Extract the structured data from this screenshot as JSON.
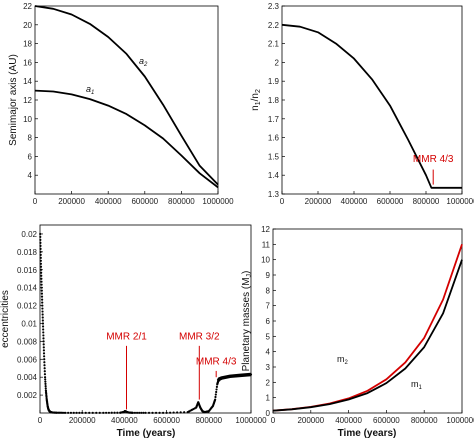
{
  "accent_red": "#d40000",
  "curve_black": "#000000",
  "chart_data": [
    {
      "type": "line",
      "id": "top-left",
      "xlabel": "",
      "ylabel": "Semimajor axis (AU)",
      "xlim": [
        0,
        1000000
      ],
      "ylim": [
        2,
        22
      ],
      "x_ticks": [
        0,
        200000,
        400000,
        600000,
        800000,
        1000000
      ],
      "x_tick_labels": [
        "0",
        "200000",
        "400000",
        "600000",
        "800000",
        "1000000"
      ],
      "y_ticks": [
        4,
        6,
        8,
        10,
        12,
        14,
        16,
        18,
        20,
        22
      ],
      "y_tick_labels": [
        "4",
        "6",
        "8",
        "10",
        "12",
        "14",
        "16",
        "18",
        "20",
        "22"
      ],
      "series": [
        {
          "name": "a2",
          "label_main": "a",
          "label_sub": "2",
          "color": "#000000",
          "x": [
            0,
            100000,
            200000,
            300000,
            400000,
            500000,
            600000,
            700000,
            800000,
            900000,
            1000000
          ],
          "y": [
            22,
            21.7,
            21.1,
            20.1,
            18.7,
            16.9,
            14.5,
            11.5,
            8.2,
            5.0,
            3.0
          ]
        },
        {
          "name": "a1",
          "label_main": "a",
          "label_sub": "1",
          "color": "#000000",
          "x": [
            0,
            100000,
            200000,
            300000,
            400000,
            500000,
            600000,
            700000,
            800000,
            900000,
            1000000
          ],
          "y": [
            13,
            12.9,
            12.6,
            12.1,
            11.4,
            10.5,
            9.3,
            7.9,
            6.1,
            4.2,
            2.7
          ]
        }
      ]
    },
    {
      "type": "line",
      "id": "top-right",
      "xlabel": "",
      "ylabel_main": "n",
      "ylabel_sub1": "1",
      "ylabel_slash": "/n",
      "ylabel_sub2": "2",
      "xlim": [
        0,
        1000000
      ],
      "ylim": [
        1.3,
        2.3
      ],
      "x_ticks": [
        0,
        200000,
        400000,
        600000,
        800000,
        1000000
      ],
      "x_tick_labels": [
        "0",
        "200000",
        "400000",
        "600000",
        "800000",
        "1000000"
      ],
      "y_ticks": [
        1.3,
        1.4,
        1.5,
        1.6,
        1.7,
        1.8,
        1.9,
        2.0,
        2.1,
        2.2,
        2.3
      ],
      "y_tick_labels": [
        "1.3",
        "1.4",
        "1.5",
        "1.6",
        "1.7",
        "1.8",
        "1.9",
        "2",
        "2.1",
        "2.2",
        "2.3"
      ],
      "series": [
        {
          "color": "#000000",
          "x": [
            0,
            100000,
            200000,
            300000,
            400000,
            500000,
            600000,
            700000,
            800000,
            830000,
            900000,
            1000000
          ],
          "y": [
            2.2,
            2.19,
            2.16,
            2.1,
            2.02,
            1.91,
            1.77,
            1.59,
            1.4,
            1.333,
            1.333,
            1.333
          ]
        }
      ],
      "annotations": [
        {
          "text": "MMR 4/3",
          "x": 840000,
          "y_text": 1.47,
          "y_line_top": 1.43,
          "y_line_bottom": 1.35
        }
      ]
    },
    {
      "type": "scatter",
      "id": "bottom-left",
      "xlabel": "Time (years)",
      "ylabel": "eccentricities",
      "xlim": [
        0,
        1000000
      ],
      "ylim": [
        0,
        0.021
      ],
      "x_ticks": [
        0,
        200000,
        400000,
        600000,
        800000,
        1000000
      ],
      "x_tick_labels": [
        "0",
        "200000",
        "400000",
        "600000",
        "800000",
        "1000000"
      ],
      "y_ticks": [
        0.002,
        0.004,
        0.006,
        0.008,
        0.01,
        0.012,
        0.014,
        0.016,
        0.018,
        0.02
      ],
      "y_tick_labels": [
        "0.002",
        "0.004",
        "0.006",
        "0.008",
        "0.01",
        "0.012",
        "0.014",
        "0.016",
        "0.018",
        "0.02"
      ],
      "series": [
        {
          "color": "#000000",
          "x": [
            1000,
            3000,
            5000,
            8000,
            11000,
            14000,
            17000,
            20000,
            24000,
            28000,
            32000,
            36000,
            40000,
            45000,
            50000,
            60000,
            80000,
            120000,
            200000,
            300000,
            380000,
            395000,
            405000,
            412000,
            420000,
            440000,
            500000,
            600000,
            700000,
            740000,
            750000,
            760000,
            770000,
            780000,
            800000,
            820000,
            830000,
            840000,
            845000,
            850000,
            860000,
            880000,
            900000,
            950000,
            1000000
          ],
          "y": [
            0.02,
            0.018,
            0.016,
            0.014,
            0.012,
            0.01,
            0.008,
            0.006,
            0.004,
            0.0025,
            0.0015,
            0.0008,
            0.0004,
            0.0002,
            0.0001,
            5e-05,
            3e-05,
            2e-05,
            2e-05,
            2e-05,
            3e-05,
            0.0001,
            0.0002,
            0.0001,
            5e-05,
            2e-05,
            2e-05,
            2e-05,
            0.0001,
            0.0006,
            0.0012,
            0.0006,
            0.0002,
            0.0001,
            0.0002,
            0.0008,
            0.0015,
            0.0032,
            0.0036,
            0.0038,
            0.0039,
            0.004,
            0.0041,
            0.0042,
            0.0043
          ]
        }
      ],
      "annotations": [
        {
          "text": "MMR 2/1",
          "x": 410000,
          "y_text": 0.0082,
          "y_line_top": 0.0075,
          "y_line_bottom": 0.0004
        },
        {
          "text": "MMR 3/2",
          "x": 755000,
          "y_text": 0.0082,
          "y_line_top": 0.0075,
          "y_line_bottom": 0.0015
        },
        {
          "text": "MMR 4/3",
          "x": 835000,
          "y_text": 0.0054,
          "y_line_top": 0.0047,
          "y_line_bottom": 0.004
        }
      ]
    },
    {
      "type": "line",
      "id": "bottom-right",
      "xlabel": "Time (years)",
      "ylabel": "Planetary masses (M",
      "ylabel_sub": "J",
      "ylabel_end": ")",
      "xlim": [
        0,
        1000000
      ],
      "ylim": [
        0,
        12
      ],
      "x_ticks": [
        0,
        200000,
        400000,
        600000,
        800000,
        1000000
      ],
      "x_tick_labels": [
        "0",
        "200000",
        "400000",
        "600000",
        "800000",
        "1000000"
      ],
      "y_ticks": [
        0,
        1,
        2,
        3,
        4,
        5,
        6,
        7,
        8,
        9,
        10,
        11,
        12
      ],
      "y_tick_labels": [
        "0",
        "1",
        "2",
        "3",
        "4",
        "5",
        "6",
        "7",
        "8",
        "9",
        "10",
        "11",
        "12"
      ],
      "series": [
        {
          "name": "m2",
          "label_main": "m",
          "label_sub": "2",
          "color": "#d40000",
          "x": [
            0,
            100000,
            200000,
            300000,
            400000,
            500000,
            600000,
            700000,
            800000,
            900000,
            1000000
          ],
          "y": [
            0.15,
            0.25,
            0.4,
            0.62,
            0.95,
            1.45,
            2.2,
            3.3,
            4.9,
            7.4,
            11.0
          ]
        },
        {
          "name": "m1",
          "label_main": "m",
          "label_sub": "1",
          "color": "#000000",
          "x": [
            0,
            100000,
            200000,
            300000,
            400000,
            500000,
            600000,
            700000,
            800000,
            900000,
            1000000
          ],
          "y": [
            0.15,
            0.24,
            0.38,
            0.58,
            0.88,
            1.3,
            1.95,
            2.9,
            4.3,
            6.5,
            10.0
          ]
        }
      ]
    }
  ]
}
